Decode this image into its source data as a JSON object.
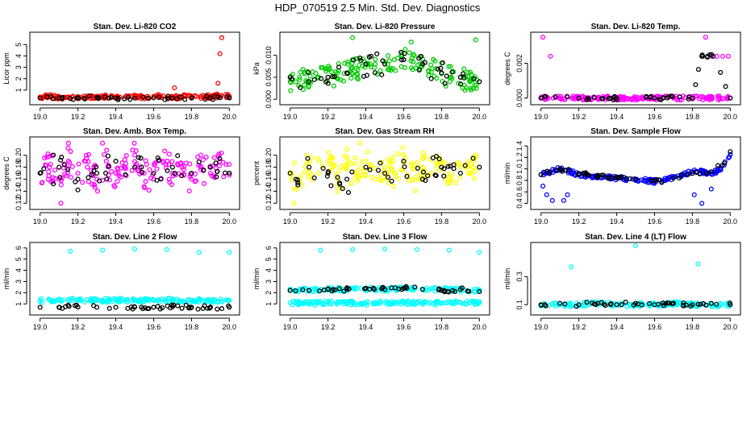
{
  "title": "HDP_070519  2.5 Min. Std. Dev. Diagnostics",
  "chart_data": [
    {
      "type": "scatter",
      "title": "Stan. Dev. Li-820 CO2",
      "ylabel": "Licor ppm",
      "color": "#ff0000",
      "xlim": [
        18.98,
        20.02
      ],
      "ylim": [
        0,
        5.8
      ],
      "xticks": [
        "19.0",
        "19.2",
        "19.4",
        "19.6",
        "19.8",
        "20.0"
      ],
      "yticks": [
        "1",
        "2",
        "3",
        "4",
        "5"
      ],
      "series": [
        {
          "name": "main",
          "x": [
            19.0,
            19.05,
            19.1,
            19.15,
            19.2,
            19.25,
            19.3,
            19.35,
            19.4,
            19.45,
            19.5,
            19.55,
            19.6,
            19.65,
            19.7,
            19.75,
            19.8,
            19.85,
            19.9,
            19.95,
            20.0
          ],
          "y": [
            0.4,
            0.45,
            0.35,
            0.4,
            0.42,
            0.38,
            0.4,
            0.45,
            0.36,
            0.4,
            0.42,
            0.38,
            0.45,
            0.5,
            0.42,
            0.4,
            0.48,
            0.45,
            0.42,
            0.5,
            0.45
          ]
        },
        {
          "name": "outliers",
          "x": [
            19.71,
            19.94,
            19.95,
            19.96
          ],
          "y": [
            1.2,
            1.6,
            4.2,
            5.6
          ]
        },
        {
          "name": "reference",
          "x": [
            19.0,
            19.1,
            19.2,
            19.3,
            19.4,
            19.5,
            19.6,
            19.7,
            19.8,
            19.9,
            20.0
          ],
          "y": [
            0.3,
            0.32,
            0.3,
            0.33,
            0.31,
            0.3,
            0.32,
            0.31,
            0.3,
            0.32,
            0.31
          ]
        }
      ]
    },
    {
      "type": "scatter",
      "title": "Stan. Dev. Li-820 Pressure",
      "ylabel": "kPa",
      "color": "#00cc00",
      "xlim": [
        18.98,
        20.02
      ],
      "ylim": [
        -0.0005,
        0.0145
      ],
      "xticks": [
        "19.0",
        "19.2",
        "19.4",
        "19.6",
        "19.8",
        "20.0"
      ],
      "yticks": [
        "0.000",
        "0.005",
        "0.010"
      ],
      "series": [
        {
          "name": "main",
          "x": [
            19.0,
            19.05,
            19.1,
            19.15,
            19.2,
            19.25,
            19.3,
            19.35,
            19.4,
            19.45,
            19.5,
            19.55,
            19.6,
            19.65,
            19.7,
            19.75,
            19.8,
            19.85,
            19.9,
            19.95,
            20.0
          ],
          "y": [
            0.004,
            0.005,
            0.004,
            0.005,
            0.005,
            0.006,
            0.006,
            0.007,
            0.008,
            0.008,
            0.0085,
            0.009,
            0.009,
            0.0085,
            0.008,
            0.007,
            0.006,
            0.005,
            0.005,
            0.004,
            0.004
          ]
        },
        {
          "name": "outliers",
          "x": [
            19.33,
            19.64,
            19.98
          ],
          "y": [
            0.014,
            0.013,
            0.0135
          ]
        },
        {
          "name": "reference",
          "x": [
            19.0,
            19.1,
            19.2,
            19.3,
            19.4,
            19.5,
            19.6,
            19.7,
            19.8,
            19.9,
            20.0
          ],
          "y": [
            0.005,
            0.004,
            0.005,
            0.006,
            0.008,
            0.008,
            0.009,
            0.008,
            0.006,
            0.005,
            0.004
          ]
        }
      ]
    },
    {
      "type": "scatter",
      "title": "Stan. Dev. Li-820 Temp.",
      "ylabel": "degrees C",
      "color": "#ff00ff",
      "xlim": [
        18.98,
        20.02
      ],
      "ylim": [
        -0.0002,
        0.0036
      ],
      "xticks": [
        "19.0",
        "19.2",
        "19.4",
        "19.6",
        "19.8",
        "20.0"
      ],
      "yticks": [
        "0.000",
        "0.002"
      ],
      "series": [
        {
          "name": "main",
          "x": [
            19.0,
            19.1,
            19.2,
            19.3,
            19.4,
            19.5,
            19.6,
            19.7,
            19.8,
            19.9,
            20.0
          ],
          "y": [
            0,
            0,
            0,
            0,
            0,
            0,
            0,
            0,
            0,
            0,
            0
          ]
        },
        {
          "name": "high",
          "x": [
            19.01,
            19.05,
            19.87,
            19.9,
            19.93,
            19.96,
            19.99
          ],
          "y": [
            0.0035,
            0.0024,
            0.0035,
            0.0024,
            0.0024,
            0.0024,
            0.0024
          ]
        },
        {
          "name": "reference",
          "x": [
            19.0,
            19.2,
            19.4,
            19.6,
            19.8,
            19.85,
            19.88,
            19.91,
            20.0
          ],
          "y": [
            0,
            0,
            0,
            0,
            0,
            0.0024,
            0.0024,
            0.0024,
            0
          ]
        }
      ]
    },
    {
      "type": "scatter",
      "title": "Stan. Dev. Amb. Box Temp.",
      "ylabel": "degrees C",
      "color": "#ff00ff",
      "xlim": [
        18.98,
        20.02
      ],
      "ylim": [
        0.115,
        0.225
      ],
      "xticks": [
        "19.0",
        "19.2",
        "19.4",
        "19.6",
        "19.8",
        "20.0"
      ],
      "yticks": [
        "0.12",
        "0.14",
        "0.16",
        "0.18",
        "0.20"
      ],
      "series": [
        {
          "name": "main",
          "x": [
            19.0,
            19.05,
            19.1,
            19.15,
            19.2,
            19.25,
            19.3,
            19.35,
            19.4,
            19.45,
            19.5,
            19.55,
            19.6,
            19.65,
            19.7,
            19.75,
            19.8,
            19.85,
            19.9,
            19.95,
            20.0
          ],
          "y": [
            0.17,
            0.18,
            0.16,
            0.19,
            0.17,
            0.18,
            0.16,
            0.19,
            0.17,
            0.18,
            0.2,
            0.17,
            0.16,
            0.19,
            0.17,
            0.18,
            0.16,
            0.18,
            0.17,
            0.19,
            0.17
          ]
        },
        {
          "name": "outliers",
          "x": [
            19.15,
            19.33,
            19.11
          ],
          "y": [
            0.22,
            0.22,
            0.12
          ]
        },
        {
          "name": "reference",
          "x": [
            19.0,
            19.1,
            19.2,
            19.3,
            19.4,
            19.5,
            19.6,
            19.7,
            19.8,
            19.9,
            20.0
          ],
          "y": [
            0.17,
            0.18,
            0.16,
            0.17,
            0.19,
            0.18,
            0.17,
            0.18,
            0.17,
            0.18,
            0.17
          ]
        }
      ]
    },
    {
      "type": "scatter",
      "title": "Stan. Dev. Gas Stream RH",
      "ylabel": "percent",
      "color": "#ffff00",
      "xlim": [
        18.98,
        20.02
      ],
      "ylim": [
        0.115,
        0.225
      ],
      "xticks": [
        "19.0",
        "19.2",
        "19.4",
        "19.6",
        "19.8",
        "20.0"
      ],
      "yticks": [
        "0.12",
        "0.14",
        "0.16",
        "0.18",
        "0.20"
      ],
      "series": [
        {
          "name": "main",
          "x": [
            19.0,
            19.05,
            19.1,
            19.15,
            19.2,
            19.25,
            19.3,
            19.35,
            19.4,
            19.45,
            19.5,
            19.55,
            19.6,
            19.65,
            19.7,
            19.75,
            19.8,
            19.85,
            19.9,
            19.95,
            20.0
          ],
          "y": [
            0.17,
            0.16,
            0.18,
            0.17,
            0.19,
            0.16,
            0.18,
            0.17,
            0.19,
            0.16,
            0.18,
            0.17,
            0.2,
            0.16,
            0.18,
            0.17,
            0.19,
            0.16,
            0.18,
            0.17,
            0.18
          ]
        },
        {
          "name": "outliers",
          "x": [
            19.37,
            19.02,
            19.3
          ],
          "y": [
            0.22,
            0.12,
            0.21
          ]
        },
        {
          "name": "reference",
          "x": [
            19.0,
            19.1,
            19.2,
            19.3,
            19.4,
            19.5,
            19.6,
            19.7,
            19.8,
            19.9,
            20.0
          ],
          "y": [
            0.17,
            0.18,
            0.17,
            0.16,
            0.18,
            0.17,
            0.19,
            0.16,
            0.18,
            0.17,
            0.18
          ]
        }
      ]
    },
    {
      "type": "scatter",
      "title": "Stan. Dev. Sample Flow",
      "ylabel": "ml/min",
      "color": "#0000ff",
      "xlim": [
        18.98,
        20.02
      ],
      "ylim": [
        0.35,
        1.5
      ],
      "xticks": [
        "19.0",
        "19.2",
        "19.4",
        "19.6",
        "19.8",
        "20.0"
      ],
      "yticks": [
        "0.4",
        "0.6",
        "0.8",
        "1.0",
        "1.2",
        "1.4"
      ],
      "series": [
        {
          "name": "main",
          "x": [
            19.0,
            19.05,
            19.1,
            19.15,
            19.2,
            19.25,
            19.3,
            19.35,
            19.4,
            19.45,
            19.5,
            19.55,
            19.6,
            19.65,
            19.7,
            19.75,
            19.8,
            19.85,
            19.9,
            19.95,
            20.0
          ],
          "y": [
            0.9,
            0.95,
            1.0,
            0.95,
            0.9,
            0.88,
            0.86,
            0.85,
            0.84,
            0.82,
            0.8,
            0.8,
            0.78,
            0.8,
            0.85,
            0.9,
            0.95,
            0.95,
            0.92,
            1.0,
            1.25
          ]
        },
        {
          "name": "outliers",
          "x": [
            19.01,
            19.03,
            19.06,
            19.12,
            19.14,
            19.81,
            19.85,
            19.9
          ],
          "y": [
            0.7,
            0.55,
            0.45,
            0.45,
            0.55,
            0.55,
            0.4,
            0.65
          ]
        },
        {
          "name": "reference",
          "x": [
            19.0,
            19.1,
            19.2,
            19.3,
            19.4,
            19.5,
            19.6,
            19.7,
            19.8,
            19.9,
            19.97,
            20.0
          ],
          "y": [
            0.9,
            1.0,
            0.92,
            0.87,
            0.85,
            0.82,
            0.79,
            0.84,
            0.92,
            0.95,
            1.1,
            1.3
          ]
        }
      ]
    },
    {
      "type": "scatter",
      "title": "Stan. Dev. Line 2 Flow",
      "ylabel": "ml/min",
      "color": "#00ffff",
      "xlim": [
        18.98,
        20.02
      ],
      "ylim": [
        0.3,
        6.2
      ],
      "xticks": [
        "19.0",
        "19.2",
        "19.4",
        "19.6",
        "19.8",
        "20.0"
      ],
      "yticks": [
        "1",
        "2",
        "3",
        "4",
        "5",
        "6"
      ],
      "series": [
        {
          "name": "main",
          "x": [
            19.0,
            19.1,
            19.2,
            19.3,
            19.4,
            19.5,
            19.6,
            19.7,
            19.8,
            19.9,
            20.0
          ],
          "y": [
            1.3,
            1.3,
            1.35,
            1.3,
            1.35,
            1.3,
            1.3,
            1.35,
            1.3,
            1.3,
            1.3
          ]
        },
        {
          "name": "outliers",
          "x": [
            19.16,
            19.33,
            19.5,
            19.67,
            19.84,
            20.0
          ],
          "y": [
            5.7,
            5.8,
            5.9,
            5.85,
            5.6,
            5.6
          ]
        },
        {
          "name": "reference",
          "x": [
            19.0,
            19.1,
            19.2,
            19.3,
            19.4,
            19.5,
            19.6,
            19.7,
            19.8,
            19.9,
            20.0
          ],
          "y": [
            0.7,
            0.7,
            0.72,
            0.7,
            0.7,
            0.72,
            0.7,
            0.75,
            0.7,
            0.72,
            0.7
          ]
        }
      ]
    },
    {
      "type": "scatter",
      "title": "Stan. Dev. Line 3 Flow",
      "ylabel": "ml/min",
      "color": "#00ffff",
      "xlim": [
        18.98,
        20.02
      ],
      "ylim": [
        0.3,
        6.2
      ],
      "xticks": [
        "19.0",
        "19.2",
        "19.4",
        "19.6",
        "19.8",
        "20.0"
      ],
      "yticks": [
        "1",
        "2",
        "3",
        "4",
        "5",
        "6"
      ],
      "series": [
        {
          "name": "main",
          "x": [
            19.0,
            19.1,
            19.2,
            19.3,
            19.4,
            19.5,
            19.6,
            19.7,
            19.8,
            19.9,
            20.0
          ],
          "y": [
            1.1,
            1.05,
            1.1,
            1.1,
            1.05,
            1.1,
            1.1,
            1.1,
            1.05,
            1.1,
            1.1
          ]
        },
        {
          "name": "upper",
          "x": [
            19.0,
            19.1,
            19.2,
            19.3,
            19.4,
            19.5,
            19.6,
            19.7,
            19.8,
            19.9,
            20.0
          ],
          "y": [
            2.2,
            2.25,
            2.3,
            2.3,
            2.35,
            2.3,
            2.35,
            2.3,
            2.3,
            2.25,
            2.2
          ]
        },
        {
          "name": "outliers",
          "x": [
            19.16,
            19.33,
            19.5,
            19.67,
            19.84,
            20.0
          ],
          "y": [
            5.8,
            5.85,
            5.9,
            5.85,
            5.8,
            5.6
          ]
        },
        {
          "name": "reference",
          "x": [
            19.0,
            19.1,
            19.2,
            19.3,
            19.4,
            19.5,
            19.6,
            19.7,
            19.8,
            19.9,
            20.0
          ],
          "y": [
            2.2,
            2.2,
            2.3,
            2.3,
            2.4,
            2.3,
            2.4,
            2.3,
            2.2,
            2.3,
            2.1
          ]
        }
      ]
    },
    {
      "type": "scatter",
      "title": "Stan. Dev. Line 4 (LT) Flow",
      "ylabel": "ml/min",
      "color": "#00ffff",
      "xlim": [
        18.98,
        20.02
      ],
      "ylim": [
        0.05,
        0.52
      ],
      "xticks": [
        "19.0",
        "19.2",
        "19.4",
        "19.6",
        "19.8",
        "20.0"
      ],
      "yticks": [
        "0.1",
        "0.3"
      ],
      "series": [
        {
          "name": "main",
          "x": [
            19.0,
            19.1,
            19.2,
            19.3,
            19.4,
            19.5,
            19.6,
            19.7,
            19.8,
            19.9,
            20.0
          ],
          "y": [
            0.1,
            0.1,
            0.1,
            0.11,
            0.1,
            0.1,
            0.1,
            0.11,
            0.1,
            0.1,
            0.1
          ]
        },
        {
          "name": "outliers",
          "x": [
            19.16,
            19.5,
            19.83
          ],
          "y": [
            0.37,
            0.52,
            0.39
          ]
        },
        {
          "name": "reference",
          "x": [
            19.0,
            19.1,
            19.2,
            19.3,
            19.4,
            19.5,
            19.6,
            19.7,
            19.8,
            19.9,
            20.0
          ],
          "y": [
            0.1,
            0.11,
            0.1,
            0.11,
            0.1,
            0.11,
            0.1,
            0.11,
            0.1,
            0.11,
            0.1
          ]
        }
      ]
    }
  ]
}
